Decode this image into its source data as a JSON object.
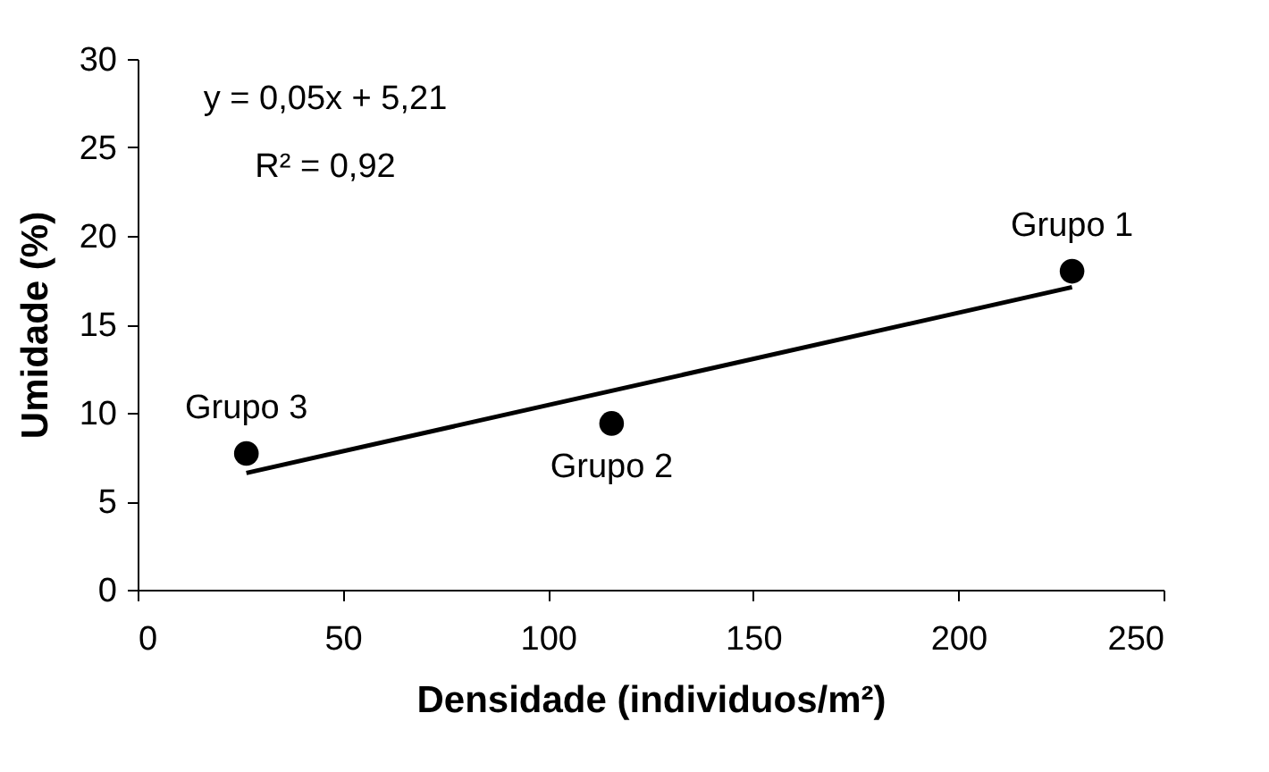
{
  "chart_data": {
    "type": "scatter",
    "xlabel": "Densidade (individuos/m²)",
    "ylabel": "Umidade (%)",
    "xlim": [
      0,
      250
    ],
    "xticks": [
      0,
      50,
      100,
      150,
      200,
      250
    ],
    "ylim": [
      0,
      30
    ],
    "yticks": [
      0,
      5,
      10,
      15,
      20,
      25,
      30
    ],
    "grid": false,
    "marker": "circle",
    "series": [
      {
        "type": "scatter",
        "color": "#000000",
        "x": [
          227.7,
          115.5,
          26.5
        ],
        "values": [
          18.0,
          9.4,
          7.7
        ]
      },
      {
        "type": "line",
        "color": "#000000",
        "marker": "none",
        "line_style": "solid",
        "x": [
          26.5,
          227.7
        ],
        "values": [
          6.6,
          17.1
        ]
      }
    ],
    "annotations": [
      "y = 0,05x + 5,21",
      "R² = 0,92",
      {
        "text": "Grupo 1",
        "x": 227.7,
        "y": 18.0
      },
      {
        "text": "Grupo 2",
        "x": 115.5,
        "y": 9.4
      },
      {
        "text": "Grupo 3",
        "x": 26.5,
        "y": 7.7
      }
    ]
  }
}
